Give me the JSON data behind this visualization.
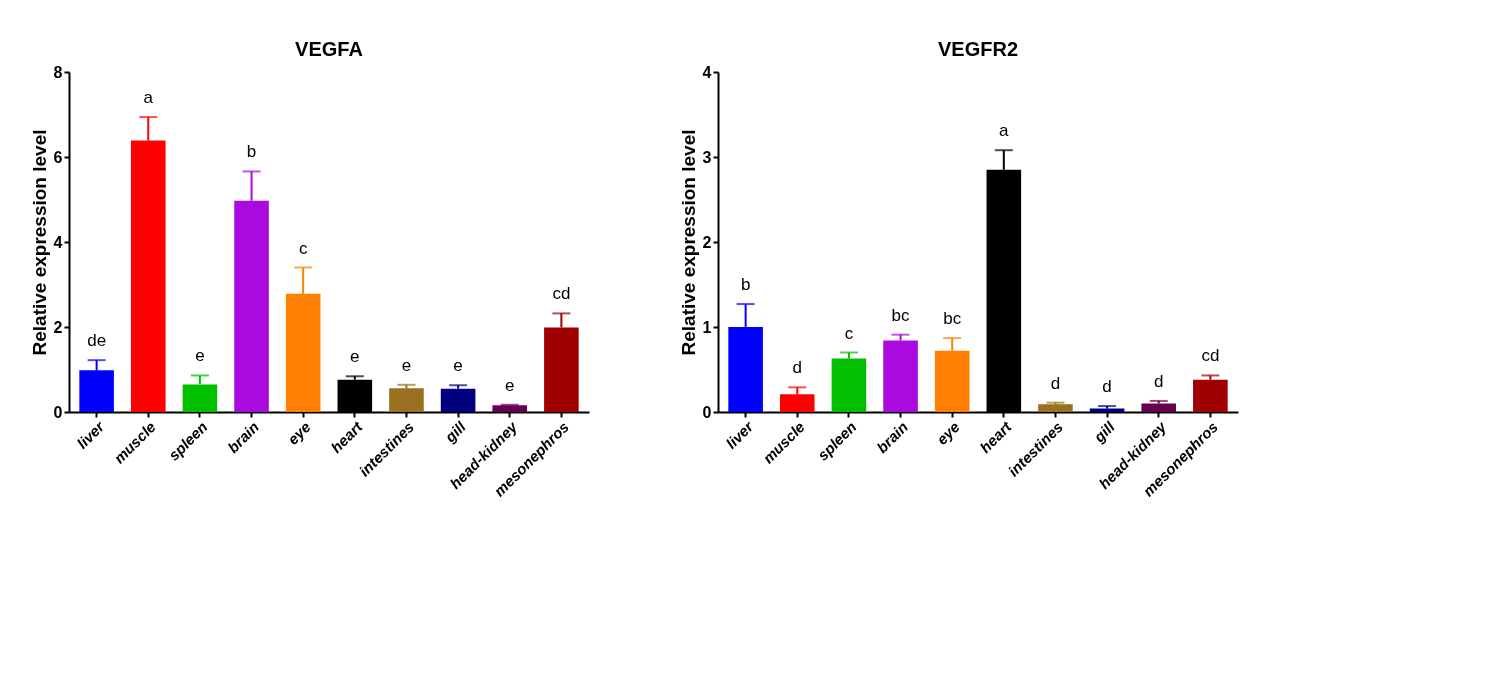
{
  "chart_data": [
    {
      "type": "bar",
      "title": "VEGFA",
      "ylabel": "Relative expression level",
      "categories": [
        "liver",
        "muscle",
        "spleen",
        "brain",
        "eye",
        "heart",
        "intestines",
        "gill",
        "head-kidney",
        "mesonephros"
      ],
      "values": [
        0.98,
        6.39,
        0.65,
        4.97,
        2.78,
        0.76,
        0.56,
        0.55,
        0.16,
        1.99
      ],
      "errors": [
        [
          0.98,
          1.22
        ],
        [
          6.39,
          6.94
        ],
        [
          0.65,
          0.86
        ],
        [
          4.97,
          5.66
        ],
        [
          2.78,
          3.4
        ],
        [
          0.76,
          0.84
        ],
        [
          0.56,
          0.64
        ],
        [
          0.55,
          0.63
        ],
        [
          0.16,
          0.17
        ],
        [
          1.99,
          2.32
        ]
      ],
      "colors": [
        "#0000ff",
        "#ff0000",
        "#00c000",
        "#aa0ae0",
        "#ff8000",
        "#000000",
        "#997020",
        "#000080",
        "#660050",
        "#a00000"
      ],
      "ylim": [
        0,
        8
      ],
      "yticks": [
        0,
        2,
        4,
        6,
        8
      ],
      "grid": false,
      "legend": false,
      "annotations": [
        {
          "text": "de",
          "x": "liver",
          "y": 1.22
        },
        {
          "text": "a",
          "x": "muscle",
          "y": 6.94
        },
        {
          "text": "e",
          "x": "spleen",
          "y": 0.86
        },
        {
          "text": "b",
          "x": "brain",
          "y": 5.66
        },
        {
          "text": "c",
          "x": "eye",
          "y": 3.4
        },
        {
          "text": "e",
          "x": "heart",
          "y": 0.84
        },
        {
          "text": "e",
          "x": "intestines",
          "y": 0.64
        },
        {
          "text": "e",
          "x": "gill",
          "y": 0.63
        },
        {
          "text": "e",
          "x": "head-kidney",
          "y": 0.17
        },
        {
          "text": "cd",
          "x": "mesonephros",
          "y": 2.32
        }
      ]
    },
    {
      "type": "bar",
      "title": "VEGFR2",
      "ylabel": "Relative expression level",
      "categories": [
        "liver",
        "muscle",
        "spleen",
        "brain",
        "eye",
        "heart",
        "intestines",
        "gill",
        "head-kidney",
        "mesonephros"
      ],
      "values": [
        1.0,
        0.21,
        0.63,
        0.84,
        0.72,
        2.85,
        0.09,
        0.04,
        0.1,
        0.38
      ],
      "errors": [
        [
          1.0,
          1.27
        ],
        [
          0.21,
          0.29
        ],
        [
          0.63,
          0.7
        ],
        [
          0.84,
          0.91
        ],
        [
          0.72,
          0.87
        ],
        [
          2.85,
          3.08
        ],
        [
          0.09,
          0.11
        ],
        [
          0.04,
          0.07
        ],
        [
          0.1,
          0.13
        ],
        [
          0.38,
          0.43
        ]
      ],
      "colors": [
        "#0000ff",
        "#ff0000",
        "#00c000",
        "#aa0ae0",
        "#ff8000",
        "#000000",
        "#997020",
        "#000080",
        "#660050",
        "#a00000"
      ],
      "ylim": [
        0,
        4
      ],
      "yticks": [
        0,
        1,
        2,
        3,
        4
      ],
      "grid": false,
      "legend": false,
      "annotations": [
        {
          "text": "b",
          "x": "liver",
          "y": 1.27
        },
        {
          "text": "d",
          "x": "muscle",
          "y": 0.29
        },
        {
          "text": "c",
          "x": "spleen",
          "y": 0.7
        },
        {
          "text": "bc",
          "x": "brain",
          "y": 0.91
        },
        {
          "text": "bc",
          "x": "eye",
          "y": 0.87
        },
        {
          "text": "a",
          "x": "heart",
          "y": 3.08
        },
        {
          "text": "d",
          "x": "intestines",
          "y": 0.11
        },
        {
          "text": "d",
          "x": "gill",
          "y": 0.07
        },
        {
          "text": "d",
          "x": "head-kidney",
          "y": 0.13
        },
        {
          "text": "cd",
          "x": "mesonephros",
          "y": 0.43
        }
      ]
    }
  ]
}
